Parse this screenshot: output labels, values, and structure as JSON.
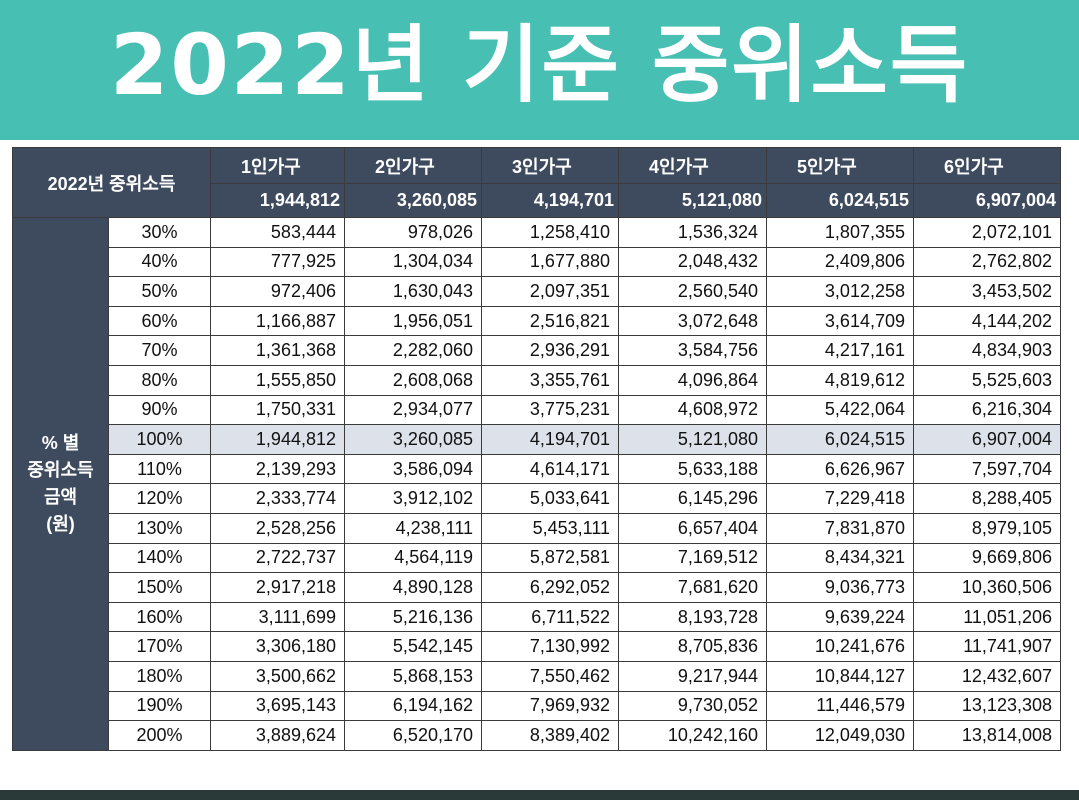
{
  "banner": {
    "title": "2022년 기준 중위소득"
  },
  "table": {
    "corner_label": "2022년 중위소득",
    "side_label": [
      "% 별",
      "중위소득",
      "금액",
      "(원)"
    ],
    "columns": [
      "1인가구",
      "2인가구",
      "3인가구",
      "4인가구",
      "5인가구",
      "6인가구"
    ],
    "median": [
      "1,944,812",
      "3,260,085",
      "4,194,701",
      "5,121,080",
      "6,024,515",
      "6,907,004"
    ],
    "highlight_row": "100%",
    "rows": [
      {
        "pct": "30%",
        "values": [
          "583,444",
          "978,026",
          "1,258,410",
          "1,536,324",
          "1,807,355",
          "2,072,101"
        ]
      },
      {
        "pct": "40%",
        "values": [
          "777,925",
          "1,304,034",
          "1,677,880",
          "2,048,432",
          "2,409,806",
          "2,762,802"
        ]
      },
      {
        "pct": "50%",
        "values": [
          "972,406",
          "1,630,043",
          "2,097,351",
          "2,560,540",
          "3,012,258",
          "3,453,502"
        ]
      },
      {
        "pct": "60%",
        "values": [
          "1,166,887",
          "1,956,051",
          "2,516,821",
          "3,072,648",
          "3,614,709",
          "4,144,202"
        ]
      },
      {
        "pct": "70%",
        "values": [
          "1,361,368",
          "2,282,060",
          "2,936,291",
          "3,584,756",
          "4,217,161",
          "4,834,903"
        ]
      },
      {
        "pct": "80%",
        "values": [
          "1,555,850",
          "2,608,068",
          "3,355,761",
          "4,096,864",
          "4,819,612",
          "5,525,603"
        ]
      },
      {
        "pct": "90%",
        "values": [
          "1,750,331",
          "2,934,077",
          "3,775,231",
          "4,608,972",
          "5,422,064",
          "6,216,304"
        ]
      },
      {
        "pct": "100%",
        "values": [
          "1,944,812",
          "3,260,085",
          "4,194,701",
          "5,121,080",
          "6,024,515",
          "6,907,004"
        ]
      },
      {
        "pct": "110%",
        "values": [
          "2,139,293",
          "3,586,094",
          "4,614,171",
          "5,633,188",
          "6,626,967",
          "7,597,704"
        ]
      },
      {
        "pct": "120%",
        "values": [
          "2,333,774",
          "3,912,102",
          "5,033,641",
          "6,145,296",
          "7,229,418",
          "8,288,405"
        ]
      },
      {
        "pct": "130%",
        "values": [
          "2,528,256",
          "4,238,111",
          "5,453,111",
          "6,657,404",
          "7,831,870",
          "8,979,105"
        ]
      },
      {
        "pct": "140%",
        "values": [
          "2,722,737",
          "4,564,119",
          "5,872,581",
          "7,169,512",
          "8,434,321",
          "9,669,806"
        ]
      },
      {
        "pct": "150%",
        "values": [
          "2,917,218",
          "4,890,128",
          "6,292,052",
          "7,681,620",
          "9,036,773",
          "10,360,506"
        ]
      },
      {
        "pct": "160%",
        "values": [
          "3,111,699",
          "5,216,136",
          "6,711,522",
          "8,193,728",
          "9,639,224",
          "11,051,206"
        ]
      },
      {
        "pct": "170%",
        "values": [
          "3,306,180",
          "5,542,145",
          "7,130,992",
          "8,705,836",
          "10,241,676",
          "11,741,907"
        ]
      },
      {
        "pct": "180%",
        "values": [
          "3,500,662",
          "5,868,153",
          "7,550,462",
          "9,217,944",
          "10,844,127",
          "12,432,607"
        ]
      },
      {
        "pct": "190%",
        "values": [
          "3,695,143",
          "6,194,162",
          "7,969,932",
          "9,730,052",
          "11,446,579",
          "13,123,308"
        ]
      },
      {
        "pct": "200%",
        "values": [
          "3,889,624",
          "6,520,170",
          "8,389,402",
          "10,242,160",
          "12,049,030",
          "13,814,008"
        ]
      }
    ]
  }
}
